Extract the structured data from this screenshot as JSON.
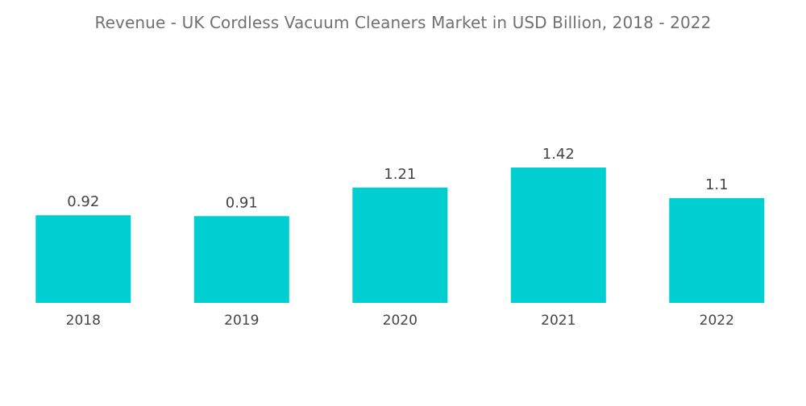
{
  "title": "Revenue - UK Cordless Vacuum Cleaners Market in USD Billion, 2018 - 2022",
  "chart_data": {
    "type": "bar",
    "title": "Revenue - UK Cordless Vacuum Cleaners Market in USD Billion, 2018 - 2022",
    "xlabel": "",
    "ylabel": "",
    "categories": [
      "2018",
      "2019",
      "2020",
      "2021",
      "2022"
    ],
    "values": [
      0.92,
      0.91,
      1.21,
      1.42,
      1.1
    ],
    "data_labels": [
      "0.92",
      "0.91",
      "1.21",
      "1.42",
      "1.1"
    ],
    "ylim": [
      0,
      1.42
    ],
    "grid": false,
    "legend": "none",
    "bar_color": "#00ced1"
  }
}
